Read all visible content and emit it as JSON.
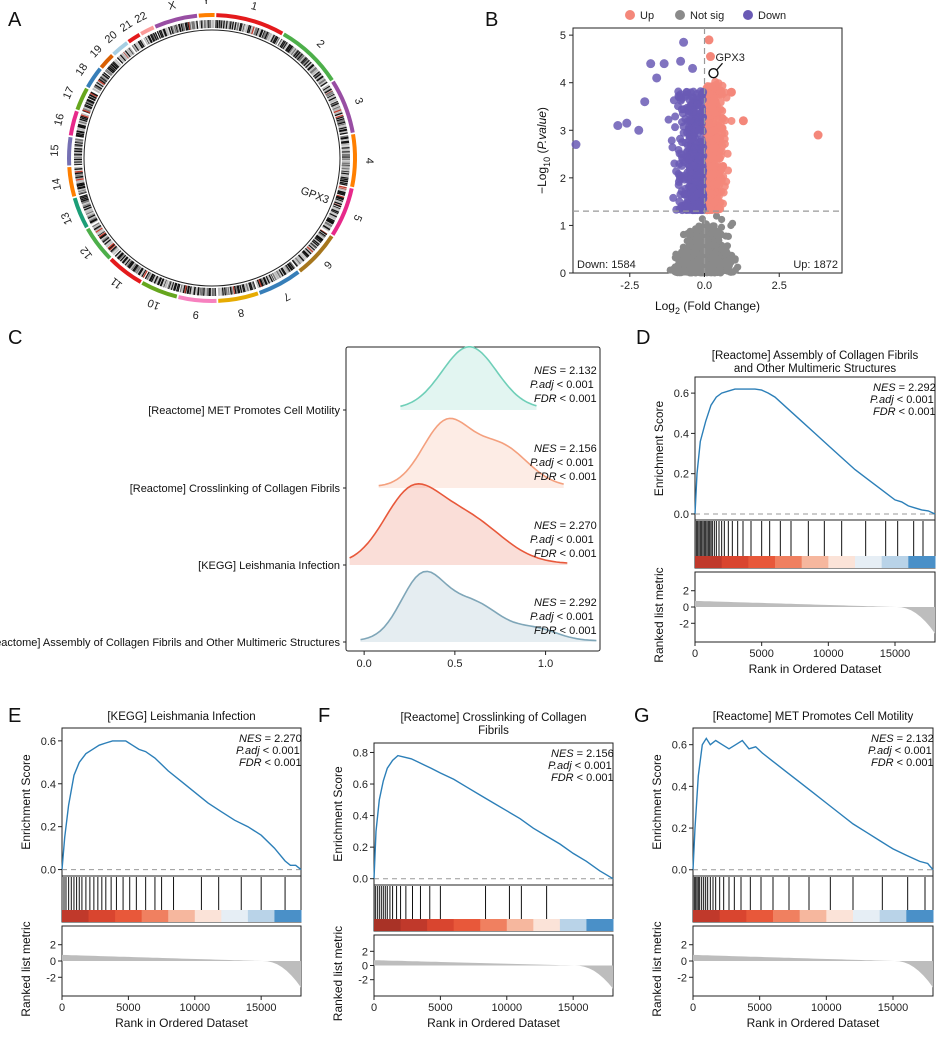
{
  "panel_letters": [
    "A",
    "B",
    "C",
    "D",
    "E",
    "F",
    "G"
  ],
  "colors": {
    "up": "#F4877A",
    "notsig": "#8A8A8A",
    "down": "#6A5AB5",
    "es_line": "#2C7FB8",
    "ridge_met": "#6FCFB8",
    "ridge_cross": "#F4A07E",
    "ridge_kegg": "#E8583A",
    "ridge_assembly": "#7FA6B8"
  },
  "chart_data": [
    {
      "panel": "A",
      "type": "circos",
      "chromosome_labels": [
        "1",
        "2",
        "3",
        "4",
        "5",
        "6",
        "7",
        "8",
        "9",
        "10",
        "11",
        "12",
        "13",
        "14",
        "15",
        "16",
        "17",
        "18",
        "19",
        "20",
        "21",
        "22",
        "X",
        "Y"
      ],
      "annotation": "GPX3"
    },
    {
      "panel": "B",
      "type": "scatter",
      "title": "",
      "xlabel_parts": [
        "Log",
        "2",
        " (Fold Change)"
      ],
      "ylabel_parts": [
        "−Log",
        "10",
        " (",
        "P.value",
        ")"
      ],
      "xlim": [
        -4.4,
        4.6
      ],
      "ylim": [
        0,
        5.15
      ],
      "xticks": [
        -2.5,
        0.0,
        2.5
      ],
      "xtick_labels": [
        "-2.5",
        "0.0",
        "2.5"
      ],
      "yticks": [
        0,
        1,
        2,
        3,
        4,
        5
      ],
      "ytick_labels": [
        "0",
        "1",
        "2",
        "3",
        "4",
        "5"
      ],
      "threshold_y": 1.3,
      "threshold_x": 0,
      "legend": [
        {
          "name": "Up",
          "color": "#F4877A"
        },
        {
          "name": "Not sig",
          "color": "#8A8A8A"
        },
        {
          "name": "Down",
          "color": "#6A5AB5"
        }
      ],
      "down_label": "Down: 1584",
      "up_label": "Up: 1872",
      "highlight": {
        "label": "GPX3",
        "x": 0.3,
        "y": 4.2
      },
      "outliers_up": [
        [
          3.8,
          2.9
        ],
        [
          0.15,
          4.9
        ],
        [
          0.9,
          3.8
        ],
        [
          1.3,
          3.2
        ],
        [
          0.2,
          4.55
        ]
      ],
      "outliers_down": [
        [
          -4.3,
          2.7
        ],
        [
          -2.9,
          3.1
        ],
        [
          -2.6,
          3.15
        ],
        [
          -2.2,
          3.0
        ],
        [
          -2.0,
          3.6
        ],
        [
          -1.8,
          4.4
        ],
        [
          -1.6,
          4.1
        ],
        [
          -0.8,
          4.45
        ],
        [
          -0.7,
          4.85
        ],
        [
          -1.35,
          4.4
        ],
        [
          -0.4,
          4.3
        ]
      ]
    },
    {
      "panel": "C",
      "type": "ridgeline",
      "x": [
        -0.1,
        1.3
      ],
      "xticks": [
        0.0,
        0.5,
        1.0
      ],
      "xtick_labels": [
        "0.0",
        "0.5",
        "1.0"
      ],
      "series": [
        {
          "name": "[Reactome] MET Promotes Cell Motility",
          "nes_label": "NES",
          "nes": "= 2.132",
          "padj_label": "P.adj",
          "padj": "< 0.001",
          "fdr_label": "FDR",
          "fdr": "< 0.001",
          "range": [
            0.2,
            0.95
          ],
          "peaks": [
            [
              0.58,
              0.15,
              1.0
            ]
          ],
          "color": "#6FCFB8"
        },
        {
          "name": "[Reactome] Crosslinking of Collagen Fibrils",
          "nes_label": "NES",
          "nes": "= 2.156",
          "padj_label": "P.adj",
          "padj": "< 0.001",
          "fdr_label": "FDR",
          "fdr": "< 0.001",
          "range": [
            0.08,
            1.1
          ],
          "peaks": [
            [
              0.45,
              0.13,
              1.0
            ],
            [
              0.75,
              0.15,
              0.65
            ]
          ],
          "color": "#F4A07E"
        },
        {
          "name": "[KEGG] Leishmania Infection",
          "nes_label": "NES",
          "nes": "= 2.270",
          "padj_label": "P.adj",
          "padj": "< 0.001",
          "fdr_label": "FDR",
          "fdr": "< 0.001",
          "range": [
            -0.08,
            1.12
          ],
          "peaks": [
            [
              0.25,
              0.15,
              1.0
            ],
            [
              0.55,
              0.2,
              0.75
            ]
          ],
          "color": "#E8583A"
        },
        {
          "name": "[Reactome] Assembly of Collagen Fibrils and Other Multimeric Structures",
          "nes_label": "NES",
          "nes": "= 2.292",
          "padj_label": "P.adj",
          "padj": "< 0.001",
          "fdr_label": "FDR",
          "fdr": "< 0.001",
          "range": [
            -0.02,
            1.28
          ],
          "peaks": [
            [
              0.32,
              0.12,
              1.0
            ],
            [
              0.6,
              0.15,
              0.6
            ],
            [
              0.95,
              0.12,
              0.18
            ]
          ],
          "color": "#7FA6B8"
        }
      ]
    },
    {
      "panel": "D",
      "type": "line",
      "title_lines": [
        "[Reactome] Assembly of Collagen Fibrils",
        "and Other Multimeric Structures"
      ],
      "xlabel": "Rank in Ordered Dataset",
      "ylabel_top": "Enrichment Score",
      "ylabel_bottom": "Ranked list metric",
      "xlim": [
        0,
        18000
      ],
      "xticks": [
        0,
        5000,
        10000,
        15000
      ],
      "xtick_labels": [
        "0",
        "5000",
        "10000",
        "15000"
      ],
      "es_ylim": [
        -0.03,
        0.68
      ],
      "es_yticks": [
        0.0,
        0.2,
        0.4,
        0.6
      ],
      "es_ytick_labels": [
        "0.0",
        "0.2",
        "0.4",
        "0.6"
      ],
      "metric_yticks": [
        2,
        0,
        -2
      ],
      "metric_ytick_labels": [
        "2",
        "0",
        "-2"
      ],
      "nes_label": "NES",
      "nes": "= 2.292",
      "padj_label": "P.adj",
      "padj": "< 0.001",
      "fdr_label": "FDR",
      "fdr": "< 0.001",
      "x": [
        0,
        150,
        400,
        800,
        1200,
        1600,
        2000,
        2500,
        3000,
        3500,
        4000,
        4500,
        5000,
        5500,
        6000,
        7000,
        8000,
        9000,
        10000,
        11000,
        12000,
        13000,
        14000,
        15000,
        15500,
        16000,
        16500,
        17000,
        17500,
        18000
      ],
      "y": [
        0,
        0.2,
        0.36,
        0.46,
        0.54,
        0.58,
        0.6,
        0.61,
        0.62,
        0.62,
        0.62,
        0.62,
        0.615,
        0.6,
        0.58,
        0.52,
        0.46,
        0.4,
        0.34,
        0.28,
        0.22,
        0.17,
        0.12,
        0.07,
        0.06,
        0.04,
        0.03,
        0.02,
        0.015,
        0.0
      ],
      "hits": [
        100,
        200,
        300,
        400,
        500,
        600,
        700,
        800,
        900,
        1000,
        1100,
        1200,
        1300,
        1450,
        1600,
        1800,
        2000,
        2200,
        2500,
        2800,
        3200,
        3600,
        4200,
        5000,
        5600,
        6400,
        7200,
        8500,
        9700,
        11000,
        12800,
        14300,
        15200,
        16400,
        17100
      ],
      "heat": [
        "#C0392B",
        "#D9452F",
        "#E8583A",
        "#F08060",
        "#F6B79E",
        "#FBE3D8",
        "#E6EEF5",
        "#B9D3E8",
        "#4A90C8"
      ]
    },
    {
      "panel": "E",
      "type": "line",
      "title_lines": [
        "[KEGG] Leishmania Infection"
      ],
      "xlabel": "Rank in Ordered Dataset",
      "ylabel_top": "Enrichment Score",
      "ylabel_bottom": "Ranked list metric",
      "xlim": [
        0,
        18000
      ],
      "xticks": [
        0,
        5000,
        10000,
        15000
      ],
      "xtick_labels": [
        "0",
        "5000",
        "10000",
        "15000"
      ],
      "es_ylim": [
        -0.03,
        0.66
      ],
      "es_yticks": [
        0.0,
        0.2,
        0.4,
        0.6
      ],
      "es_ytick_labels": [
        "0.0",
        "0.2",
        "0.4",
        "0.6"
      ],
      "metric_yticks": [
        2,
        0,
        -2
      ],
      "metric_ytick_labels": [
        "2",
        "0",
        "-2"
      ],
      "nes_label": "NES",
      "nes": "= 2.270",
      "padj_label": "P.adj",
      "padj": "< 0.001",
      "fdr_label": "FDR",
      "fdr": "< 0.001",
      "x": [
        0,
        200,
        500,
        900,
        1300,
        1800,
        2300,
        2800,
        3300,
        3800,
        4300,
        4800,
        5300,
        5800,
        6300,
        7000,
        8000,
        9000,
        10000,
        11000,
        12000,
        13000,
        14000,
        15000,
        16000,
        16800,
        17200,
        17600,
        18000
      ],
      "y": [
        0,
        0.15,
        0.3,
        0.44,
        0.5,
        0.54,
        0.56,
        0.58,
        0.59,
        0.6,
        0.6,
        0.6,
        0.58,
        0.56,
        0.55,
        0.52,
        0.46,
        0.41,
        0.36,
        0.31,
        0.27,
        0.23,
        0.2,
        0.16,
        0.1,
        0.04,
        0.02,
        0.02,
        0.0
      ],
      "hits": [
        150,
        300,
        500,
        700,
        900,
        1100,
        1300,
        1500,
        1800,
        2100,
        2400,
        2700,
        3000,
        3300,
        3700,
        4100,
        4600,
        5100,
        5600,
        6300,
        7000,
        7500,
        8400,
        10500,
        11800,
        13500,
        15000,
        16800
      ],
      "heat": [
        "#C0392B",
        "#D9452F",
        "#E8583A",
        "#F08060",
        "#F6B79E",
        "#FBE3D8",
        "#E6EEF5",
        "#B9D3E8",
        "#4A90C8"
      ]
    },
    {
      "panel": "F",
      "type": "line",
      "title_lines": [
        "[Reactome] Crosslinking of Collagen",
        "Fibrils"
      ],
      "xlabel": "Rank in Ordered Dataset",
      "ylabel_top": "Enrichment Score",
      "ylabel_bottom": "Ranked list metric",
      "xlim": [
        0,
        18000
      ],
      "xticks": [
        0,
        5000,
        10000,
        15000
      ],
      "xtick_labels": [
        "0",
        "5000",
        "10000",
        "15000"
      ],
      "es_ylim": [
        -0.04,
        0.86
      ],
      "es_yticks": [
        0.0,
        0.2,
        0.4,
        0.6,
        0.8
      ],
      "es_ytick_labels": [
        "0.0",
        "0.2",
        "0.4",
        "0.6",
        "0.8"
      ],
      "metric_yticks": [
        2,
        0,
        -2
      ],
      "metric_ytick_labels": [
        "2",
        "0",
        "-2"
      ],
      "nes_label": "NES",
      "nes": "= 2.156",
      "padj_label": "P.adj",
      "padj": "< 0.001",
      "fdr_label": "FDR",
      "fdr": "< 0.001",
      "x": [
        0,
        150,
        400,
        700,
        1000,
        1400,
        1800,
        2300,
        2800,
        3300,
        3800,
        4300,
        5000,
        6000,
        7000,
        8000,
        9000,
        10000,
        11000,
        12000,
        13000,
        14000,
        15000,
        16000,
        17000,
        18000
      ],
      "y": [
        0,
        0.3,
        0.5,
        0.62,
        0.7,
        0.75,
        0.78,
        0.77,
        0.76,
        0.74,
        0.72,
        0.7,
        0.67,
        0.63,
        0.58,
        0.53,
        0.48,
        0.43,
        0.38,
        0.32,
        0.27,
        0.22,
        0.16,
        0.11,
        0.05,
        0.0
      ],
      "hits": [
        100,
        250,
        400,
        550,
        700,
        850,
        1000,
        1200,
        1400,
        1700,
        2000,
        2400,
        2900,
        3500,
        4200,
        5000,
        8400,
        10200,
        11100,
        13000
      ],
      "heat": [
        "#A93226",
        "#C0392B",
        "#D9452F",
        "#E8583A",
        "#F08060",
        "#F6B79E",
        "#FBE3D8",
        "#B9D3E8",
        "#4A90C8"
      ]
    },
    {
      "panel": "G",
      "type": "line",
      "title_lines": [
        "[Reactome] MET Promotes Cell Motility"
      ],
      "xlabel": "Rank in Ordered Dataset",
      "ylabel_top": "Enrichment Score",
      "ylabel_bottom": "Ranked list metric",
      "xlim": [
        0,
        18000
      ],
      "xticks": [
        0,
        5000,
        10000,
        15000
      ],
      "xtick_labels": [
        "0",
        "5000",
        "10000",
        "15000"
      ],
      "es_ylim": [
        -0.03,
        0.68
      ],
      "es_yticks": [
        0.0,
        0.2,
        0.4,
        0.6
      ],
      "es_ytick_labels": [
        "0.0",
        "0.2",
        "0.4",
        "0.6"
      ],
      "metric_yticks": [
        2,
        0,
        -2
      ],
      "metric_ytick_labels": [
        "2",
        "0",
        "-2"
      ],
      "nes_label": "NES",
      "nes": "= 2.132",
      "padj_label": "P.adj",
      "padj": "< 0.001",
      "fdr_label": "FDR",
      "fdr": "< 0.001",
      "x": [
        0,
        150,
        400,
        700,
        1000,
        1300,
        1700,
        2200,
        2700,
        3200,
        3700,
        4200,
        4700,
        5200,
        6000,
        7000,
        8000,
        9000,
        10000,
        11000,
        12000,
        13000,
        14000,
        15000,
        16000,
        17000,
        17600,
        18000
      ],
      "y": [
        0,
        0.2,
        0.45,
        0.6,
        0.63,
        0.6,
        0.62,
        0.6,
        0.58,
        0.6,
        0.62,
        0.58,
        0.59,
        0.56,
        0.52,
        0.47,
        0.42,
        0.37,
        0.32,
        0.27,
        0.22,
        0.18,
        0.14,
        0.1,
        0.07,
        0.04,
        0.03,
        0.0
      ],
      "hits": [
        100,
        200,
        300,
        400,
        500,
        650,
        800,
        950,
        1100,
        1300,
        1500,
        1700,
        2000,
        2300,
        2700,
        3100,
        3600,
        4300,
        5100,
        6000,
        7200,
        8700,
        10300,
        12000,
        14200,
        16100,
        17400
      ],
      "heat": [
        "#C0392B",
        "#D9452F",
        "#E8583A",
        "#F08060",
        "#F6B79E",
        "#FBE3D8",
        "#E6EEF5",
        "#B9D3E8",
        "#4A90C8"
      ]
    }
  ]
}
